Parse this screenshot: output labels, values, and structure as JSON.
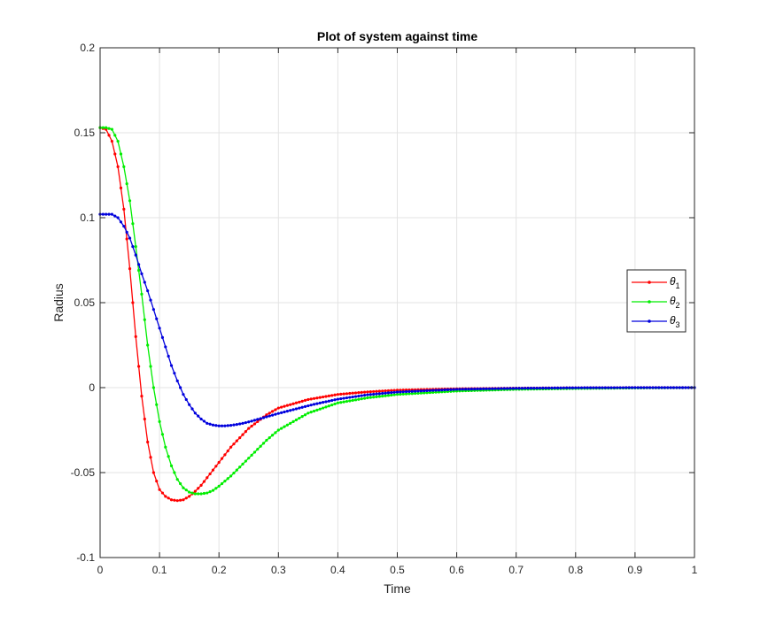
{
  "chart_data": {
    "type": "line",
    "title": "Plot of system against time",
    "xlabel": "Time",
    "ylabel": "Radius",
    "xlim": [
      0,
      1
    ],
    "ylim": [
      -0.1,
      0.2
    ],
    "xticks": [
      "0",
      "0.1",
      "0.2",
      "0.3",
      "0.4",
      "0.5",
      "0.6",
      "0.7",
      "0.8",
      "0.9",
      "1"
    ],
    "yticks": [
      "-0.1",
      "-0.05",
      "0",
      "0.05",
      "0.1",
      "0.15",
      "0.2"
    ],
    "grid": true,
    "legend_position": "right",
    "series": [
      {
        "name": "θ",
        "subscript": "1",
        "color": "#ff0000",
        "x": [
          0,
          0.01,
          0.02,
          0.03,
          0.04,
          0.05,
          0.06,
          0.07,
          0.08,
          0.09,
          0.1,
          0.11,
          0.12,
          0.13,
          0.14,
          0.15,
          0.16,
          0.17,
          0.18,
          0.2,
          0.22,
          0.25,
          0.28,
          0.3,
          0.35,
          0.4,
          0.45,
          0.5,
          0.6,
          0.7,
          0.8,
          0.9,
          1.0
        ],
        "y": [
          0.153,
          0.152,
          0.145,
          0.13,
          0.105,
          0.07,
          0.03,
          -0.005,
          -0.032,
          -0.05,
          -0.06,
          -0.064,
          -0.066,
          -0.0665,
          -0.066,
          -0.064,
          -0.061,
          -0.0575,
          -0.053,
          -0.044,
          -0.035,
          -0.024,
          -0.016,
          -0.012,
          -0.007,
          -0.004,
          -0.0025,
          -0.0015,
          -0.0007,
          -0.0003,
          -0.0001,
          0.0,
          0.0
        ]
      },
      {
        "name": "θ",
        "subscript": "2",
        "color": "#00ee00",
        "x": [
          0,
          0.01,
          0.02,
          0.03,
          0.04,
          0.05,
          0.06,
          0.07,
          0.08,
          0.09,
          0.1,
          0.11,
          0.12,
          0.13,
          0.14,
          0.15,
          0.16,
          0.17,
          0.18,
          0.19,
          0.2,
          0.22,
          0.24,
          0.26,
          0.28,
          0.3,
          0.35,
          0.4,
          0.45,
          0.5,
          0.6,
          0.7,
          0.8,
          0.9,
          1.0
        ],
        "y": [
          0.153,
          0.153,
          0.152,
          0.145,
          0.13,
          0.11,
          0.083,
          0.055,
          0.025,
          0.0,
          -0.02,
          -0.035,
          -0.046,
          -0.054,
          -0.059,
          -0.0615,
          -0.0625,
          -0.0625,
          -0.062,
          -0.0605,
          -0.058,
          -0.052,
          -0.045,
          -0.038,
          -0.031,
          -0.025,
          -0.015,
          -0.009,
          -0.006,
          -0.004,
          -0.002,
          -0.001,
          -0.0005,
          -0.0002,
          0.0
        ]
      },
      {
        "name": "θ",
        "subscript": "3",
        "color": "#0000dd",
        "x": [
          0,
          0.01,
          0.02,
          0.03,
          0.04,
          0.05,
          0.06,
          0.07,
          0.08,
          0.09,
          0.1,
          0.11,
          0.12,
          0.13,
          0.14,
          0.15,
          0.16,
          0.17,
          0.18,
          0.19,
          0.2,
          0.21,
          0.22,
          0.23,
          0.24,
          0.25,
          0.26,
          0.28,
          0.3,
          0.33,
          0.36,
          0.4,
          0.45,
          0.5,
          0.6,
          0.7,
          0.8,
          0.9,
          1.0
        ],
        "y": [
          0.102,
          0.102,
          0.102,
          0.1,
          0.095,
          0.088,
          0.078,
          0.067,
          0.057,
          0.046,
          0.035,
          0.024,
          0.013,
          0.004,
          -0.004,
          -0.01,
          -0.015,
          -0.0185,
          -0.021,
          -0.022,
          -0.0225,
          -0.0225,
          -0.0222,
          -0.0217,
          -0.021,
          -0.0202,
          -0.0192,
          -0.0172,
          -0.0152,
          -0.0125,
          -0.0098,
          -0.0068,
          -0.0042,
          -0.0026,
          -0.001,
          -0.0004,
          -0.0001,
          0.0,
          0.0
        ]
      }
    ]
  }
}
